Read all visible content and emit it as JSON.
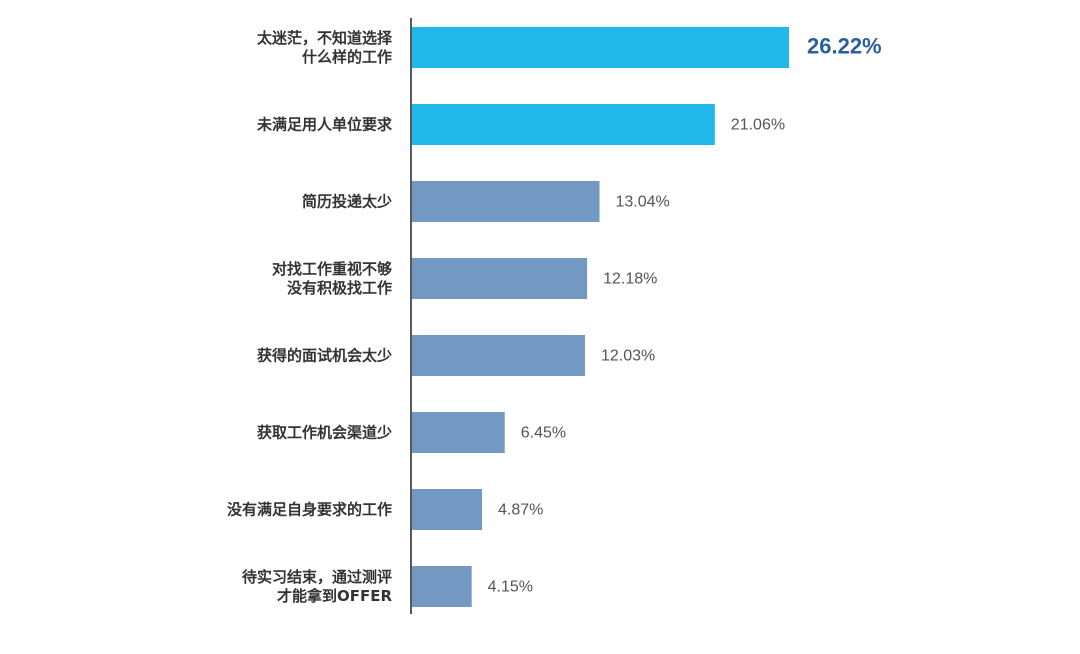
{
  "chart_data": {
    "type": "bar",
    "orientation": "horizontal",
    "categories": [
      [
        "太迷茫，不知道选择",
        "什么样的工作"
      ],
      [
        "未满足用人单位要求"
      ],
      [
        "简历投递太少"
      ],
      [
        "对找工作重视不够",
        "没有积极找工作"
      ],
      [
        "获得的面试机会太少"
      ],
      [
        "获取工作机会渠道少"
      ],
      [
        "没有满足自身要求的工作"
      ],
      [
        "待实习结束，通过测评",
        "才能拿到OFFER"
      ]
    ],
    "values": [
      26.22,
      21.06,
      13.04,
      12.18,
      12.03,
      6.45,
      4.87,
      4.15
    ],
    "value_labels": [
      "26.22%",
      "21.06%",
      "13.04%",
      "12.18%",
      "12.03%",
      "6.45%",
      "4.87%",
      "4.15%"
    ],
    "xlim": [
      0,
      26.22
    ],
    "grid": false,
    "legend": "none",
    "highlight_count": 2,
    "colors": {
      "highlight": "#1fb8e9",
      "normal": "#7399c3",
      "axis": "#222222",
      "emphasis_label": "#2a5f9e",
      "label": "#555555",
      "category_text": "#333333"
    }
  }
}
